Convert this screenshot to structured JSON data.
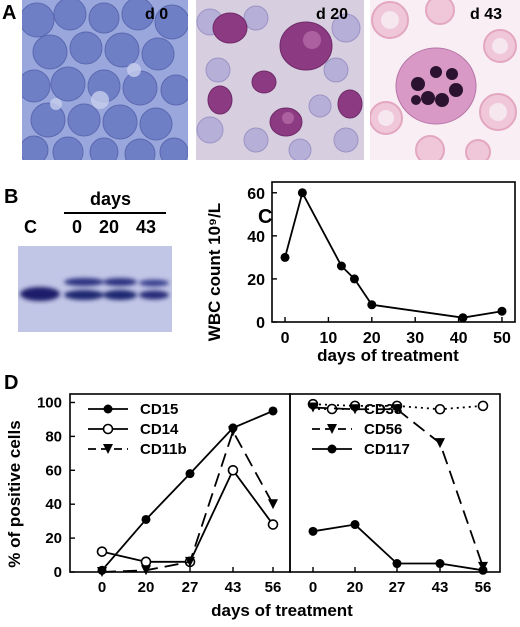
{
  "panel_a": {
    "label": "A",
    "images": [
      {
        "day_label": "d 0"
      },
      {
        "day_label": "d 20"
      },
      {
        "day_label": "d 43"
      }
    ]
  },
  "panel_b": {
    "label": "B",
    "header": "days",
    "lanes": [
      "C",
      "0",
      "20",
      "43"
    ]
  },
  "panel_c": {
    "label": "C",
    "ylabel": "WBC count 10⁹/L",
    "xlabel": "days of treatment"
  },
  "panel_d": {
    "label": "D",
    "ylabel": "% of positive cells",
    "xlabel": "days of treatment"
  },
  "colors": {
    "ink": "#000000",
    "cell_blue": "#6f7fc6",
    "cell_purple": "#9a3f88",
    "bg_pink": "#f3d6e2"
  },
  "chart_data": [
    {
      "type": "line",
      "panel": "C",
      "x": [
        0,
        4,
        13,
        16,
        20,
        41,
        50
      ],
      "series": [
        {
          "values": [
            30,
            60,
            26,
            20,
            8,
            2,
            5
          ]
        }
      ],
      "xlabel": "days of treatment",
      "ylabel": "WBC count 10⁹/L",
      "xticks": [
        0,
        10,
        20,
        30,
        40,
        50
      ],
      "yticks": [
        0,
        20,
        40,
        60
      ],
      "xlim": [
        -3,
        53
      ],
      "ylim": [
        0,
        65
      ]
    },
    {
      "type": "line",
      "panel": "D-left",
      "x": [
        0,
        20,
        27,
        43,
        56
      ],
      "xticks": [
        "0",
        "20",
        "27",
        "43",
        "56"
      ],
      "yticks": [
        0,
        20,
        40,
        60,
        80,
        100
      ],
      "ylim": [
        0,
        105
      ],
      "ylabel": "% of positive cells",
      "series": [
        {
          "name": "CD15",
          "marker": "filled-circle",
          "line": "solid",
          "values": [
            1,
            31,
            58,
            85,
            95
          ]
        },
        {
          "name": "CD14",
          "marker": "open-circle",
          "line": "solid",
          "values": [
            12,
            6,
            6,
            60,
            28
          ]
        },
        {
          "name": "CD11b",
          "marker": "filled-triangle",
          "line": "dashed",
          "values": [
            0,
            1,
            6,
            83,
            40
          ]
        }
      ]
    },
    {
      "type": "line",
      "panel": "D-right",
      "x": [
        0,
        20,
        27,
        43,
        56
      ],
      "xticks": [
        "0",
        "20",
        "27",
        "43",
        "56"
      ],
      "ylim": [
        0,
        105
      ],
      "series": [
        {
          "name": "CD33",
          "marker": "open-circle",
          "line": "dotted",
          "values": [
            99,
            98,
            98,
            96,
            98
          ]
        },
        {
          "name": "CD56",
          "marker": "filled-triangle",
          "line": "dashed",
          "values": [
            97,
            96,
            96,
            76,
            3
          ]
        },
        {
          "name": "CD117",
          "marker": "filled-circle",
          "line": "solid",
          "values": [
            24,
            28,
            5,
            5,
            1
          ]
        }
      ]
    }
  ]
}
